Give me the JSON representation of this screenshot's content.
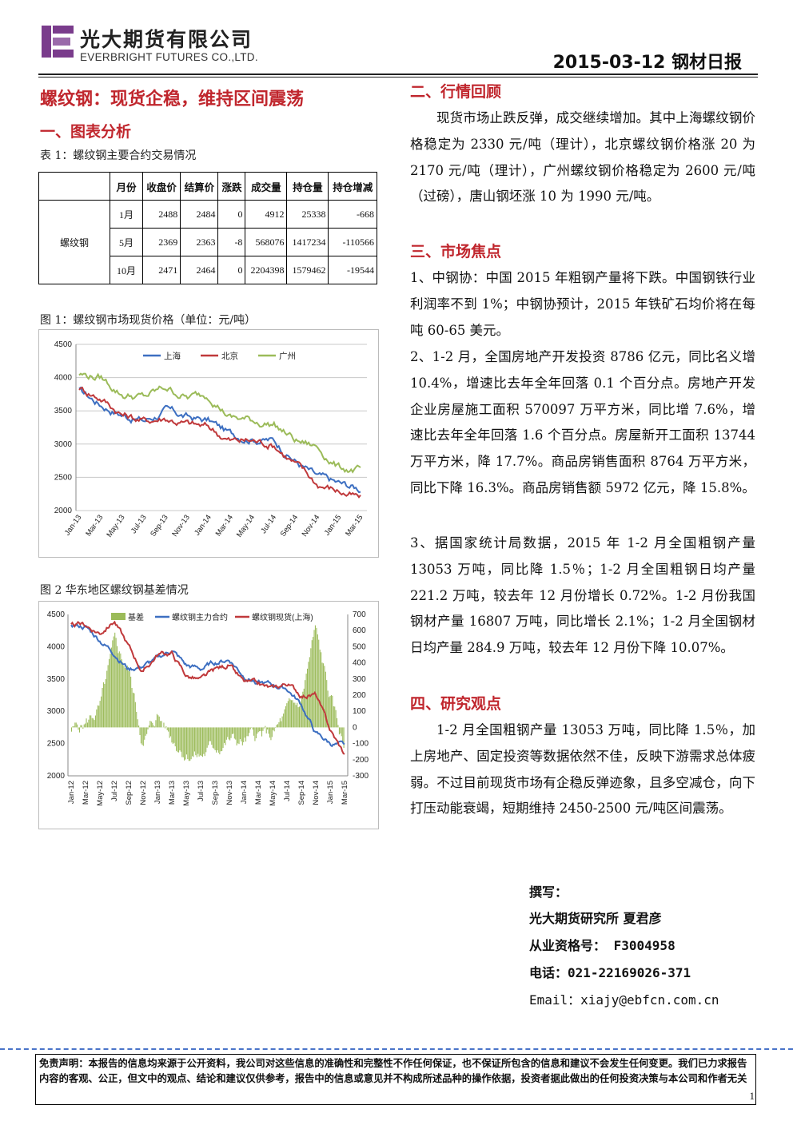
{
  "header": {
    "company_cn": "光大期货有限公司",
    "company_en": "EVERBRIGHT FUTURES CO.,LTD.",
    "report_title": "2015-03-12 钢材日报",
    "brand_color": "#7a3c8c"
  },
  "main_title": "螺纹钢：现货企稳，维持区间震荡",
  "section1": {
    "title": "一、图表分析",
    "table_caption": "表 1：螺纹钢主要合约交易情况",
    "table": {
      "headers": [
        "月份",
        "收盘价",
        "结算价",
        "涨跌",
        "成交量",
        "持仓量",
        "持仓增减"
      ],
      "row_group": "螺纹钢",
      "rows": [
        [
          "1月",
          "2488",
          "2484",
          "0",
          "4912",
          "25338",
          "-668"
        ],
        [
          "5月",
          "2369",
          "2363",
          "-8",
          "568076",
          "1417234",
          "-110566"
        ],
        [
          "10月",
          "2471",
          "2464",
          "0",
          "2204398",
          "1579462",
          "-19544"
        ]
      ]
    },
    "fig1_caption": "图 1：螺纹钢市场现货价格（单位：元/吨）",
    "fig2_caption": "图 2 华东地区螺纹钢基差情况"
  },
  "chart_data": [
    {
      "type": "line",
      "x_ticks": [
        "Jan-13",
        "Mar-13",
        "May-13",
        "Jul-13",
        "Sep-13",
        "Nov-13",
        "Jan-14",
        "Mar-14",
        "May-14",
        "Jul-14",
        "Sep-14",
        "Nov-14",
        "Jan-15",
        "Mar-15"
      ],
      "ylim": [
        2000,
        4500
      ],
      "y_ticks": [
        "4500",
        "4000",
        "3500",
        "3000",
        "2500",
        "2000"
      ],
      "grid": "horizontal",
      "legend_position": "top-center",
      "series": [
        {
          "name": "上海",
          "color": "#3d6fc1",
          "values": [
            3800,
            3600,
            3450,
            3350,
            3500,
            3400,
            3350,
            3150,
            3100,
            3050,
            2750,
            2500,
            2400,
            2330
          ]
        },
        {
          "name": "北京",
          "color": "#c0393b",
          "values": [
            3850,
            3700,
            3450,
            3350,
            3400,
            3300,
            3250,
            3050,
            3050,
            3000,
            2700,
            2400,
            2300,
            2170
          ]
        },
        {
          "name": "广州",
          "color": "#9bbb59",
          "values": [
            4050,
            4000,
            3750,
            3700,
            3850,
            3700,
            3750,
            3400,
            3350,
            3300,
            3050,
            2950,
            2650,
            2600
          ]
        }
      ]
    },
    {
      "type": "bar",
      "x_ticks": [
        "Jan-12",
        "Mar-12",
        "May-12",
        "Jul-12",
        "Sep-12",
        "Nov-12",
        "Jan-13",
        "Mar-13",
        "May-13",
        "Jul-13",
        "Sep-13",
        "Nov-13",
        "Jan-14",
        "Mar-14",
        "May-14",
        "Jul-14",
        "Sep-14",
        "Nov-14",
        "Jan-15",
        "Mar-15"
      ],
      "ylim": [
        2000,
        4500
      ],
      "y_ticks": [
        "4500",
        "4000",
        "3500",
        "3000",
        "2500",
        "2000"
      ],
      "y2lim": [
        -300,
        700
      ],
      "y2_ticks": [
        "700",
        "600",
        "500",
        "400",
        "300",
        "200",
        "100",
        "0",
        "-100",
        "-200",
        "-300"
      ],
      "legend_position": "top-center",
      "series": [
        {
          "name": "基差",
          "color": "#9bbb59",
          "axis": "right",
          "values": [
            -20,
            30,
            120,
            500,
            350,
            -100,
            80,
            -60,
            -150,
            -180,
            -120,
            -80,
            -100,
            -50,
            -60,
            80,
            150,
            600,
            200,
            -120
          ]
        },
        {
          "name": "螺纹钢主力合约",
          "color": "#3d6fc1",
          "axis": "left",
          "values": [
            4350,
            4300,
            4100,
            3900,
            3650,
            3700,
            3800,
            3950,
            3700,
            3650,
            3750,
            3800,
            3550,
            3450,
            3400,
            3350,
            3100,
            2650,
            2500,
            2450
          ]
        },
        {
          "name": "螺纹钢现货(上海)",
          "color": "#c0393b",
          "axis": "left",
          "values": [
            4330,
            4330,
            4220,
            4400,
            4000,
            3600,
            3880,
            3890,
            3550,
            3470,
            3630,
            3720,
            3450,
            3400,
            3340,
            3430,
            3250,
            3250,
            2700,
            2330
          ]
        }
      ]
    }
  ],
  "section2": {
    "title": "二、行情回顾",
    "body": "现货市场止跌反弹，成交继续增加。其中上海螺纹钢价格稳定为 2330 元/吨（理计），北京螺纹钢价格涨 20 为 2170 元/吨（理计），广州螺纹钢价格稳定为 2600 元/吨（过磅），唐山钢坯涨 10 为 1990 元/吨。"
  },
  "section3": {
    "title": "三、市场焦点",
    "items": [
      "1、中钢协：中国 2015 年粗钢产量将下跌。中国钢铁行业利润率不到 1%；中钢协预计，2015 年铁矿石均价将在每吨 60-65 美元。",
      "2、1-2 月，全国房地产开发投资 8786 亿元，同比名义增 10.4%，增速比去年全年回落 0.1 个百分点。房地产开发企业房屋施工面积 570097 万平方米，同比增 7.6%，增速比去年全年回落 1.6 个百分点。房屋新开工面积 13744 万平方米，降 17.7%。商品房销售面积 8764 万平方米，同比下降 16.3%。商品房销售额 5972 亿元，降 15.8%。",
      "3、据国家统计局数据，2015 年 1-2 月全国粗钢产量 13053 万吨，同比降 1.5％；1-2 月全国粗钢日均产量 221.2 万吨，较去年 12 月份增长 0.72%。1-2 月份我国钢材产量 16807 万吨，同比增长 2.1%；1-2 月全国钢材日均产量 284.9 万吨，较去年 12 月份下降 10.07%。"
    ]
  },
  "section4": {
    "title": "四、研究观点",
    "body": "1-2 月全国粗钢产量 13053 万吨，同比降 1.5％，加上房地产、固定投资等数据依然不佳，反映下游需求总体疲弱。不过目前现货市场有企稳反弹迹象，且多空减仓，向下打压动能衰竭，短期维持 2450-2500 元/吨区间震荡。"
  },
  "author": {
    "label": "撰写：",
    "name": "光大期货研究所 夏君彦",
    "license": "从业资格号： F3004958",
    "phone": "电话：021-22169026-371",
    "email": "Email：xiajy@ebfcn.com.cn"
  },
  "footer": {
    "disclaimer": "免责声明：本报告的信息均来源于公开资料，我公司对这些信息的准确性和完整性不作任何保证，也不保证所包含的信息和建议不会发生任何变更。我们已力求报告内容的客观、公正，但文中的观点、结论和建议仅供参考，报告中的信息或意见并不构成所述品种的操作依据，投资者据此做出的任何投资决策与本公司和作者无关",
    "page_number": "1"
  }
}
